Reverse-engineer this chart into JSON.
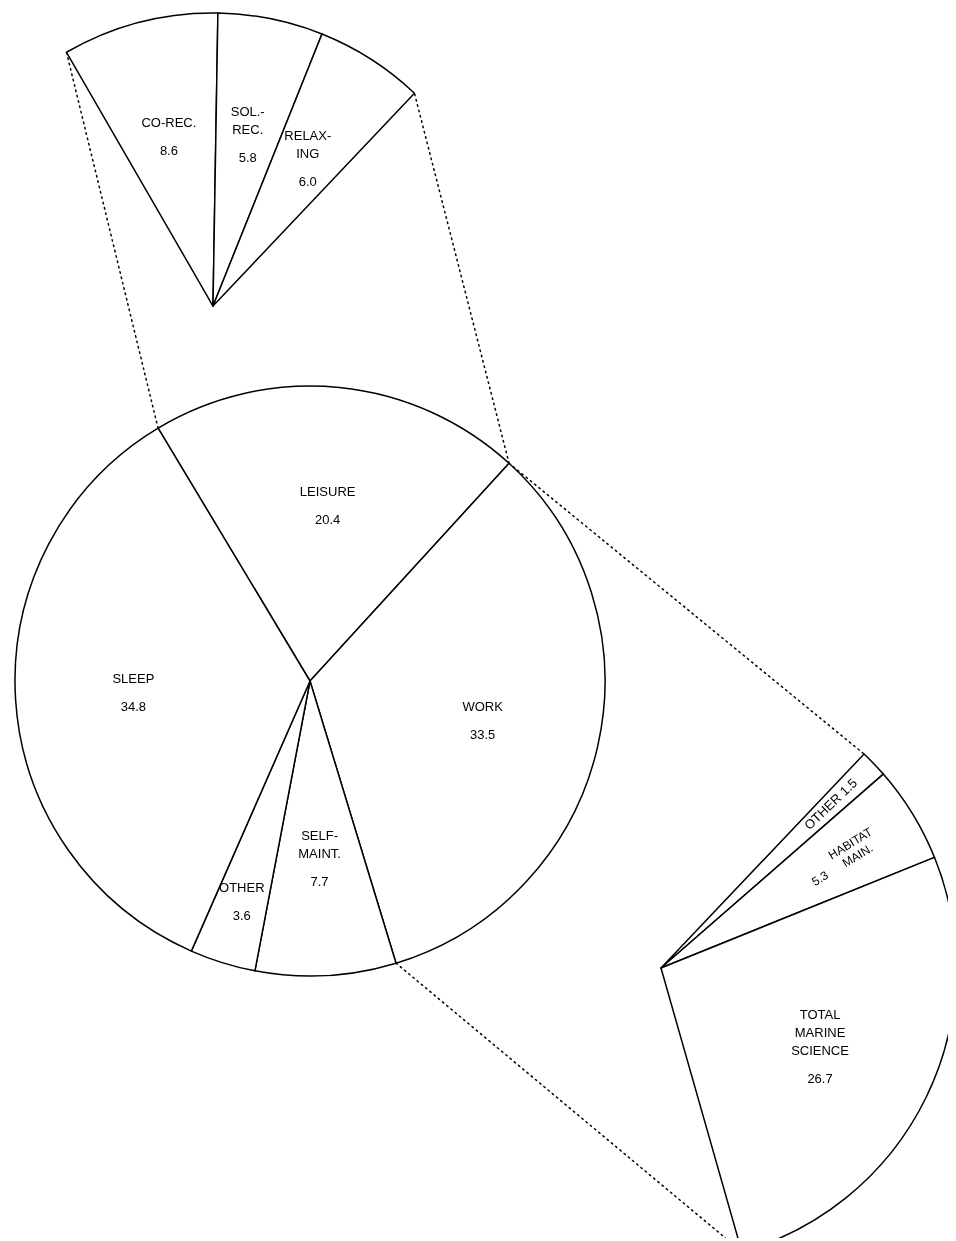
{
  "chart_data": [
    {
      "type": "pie",
      "categories": [
        "LEISURE",
        "WORK",
        "SELF-\nMAINT.",
        "OTHER",
        "SLEEP"
      ],
      "values": [
        20.4,
        33.5,
        7.7,
        3.6,
        34.8
      ],
      "value_labels": [
        "20.4",
        "33.5",
        "7.7",
        "3.6",
        "34.8"
      ]
    },
    {
      "type": "pie",
      "categories": [
        "CO-REC.",
        "SOL.-\nREC.",
        "RELAX-\nING"
      ],
      "values": [
        8.6,
        5.8,
        6.0
      ],
      "value_labels": [
        "8.6",
        "5.8",
        "6.0"
      ]
    },
    {
      "type": "pie",
      "categories": [
        "OTHER",
        "HABITAT\nMAIN.",
        "TOTAL\nMARINE\nSCIENCE"
      ],
      "values": [
        1.5,
        5.3,
        26.7
      ],
      "value_labels": [
        "1.5",
        "5.3",
        "26.7"
      ]
    }
  ]
}
